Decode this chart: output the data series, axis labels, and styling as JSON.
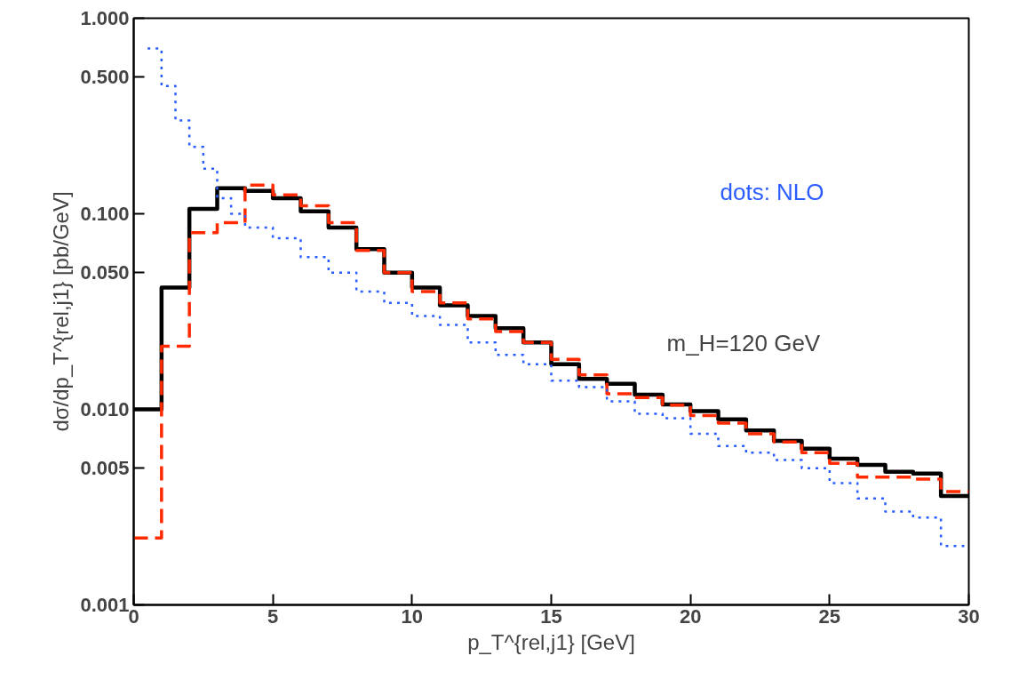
{
  "chart_data": {
    "type": "step",
    "xlabel": "p_T^{rel,j1} [GeV]",
    "ylabel": "dσ/dp_T^{rel,j1} [pb/GeV]",
    "log": "y",
    "xlim": [
      0,
      30
    ],
    "ylim": [
      0.001,
      1.0
    ],
    "xticks": [
      0,
      5,
      10,
      15,
      20,
      25,
      30
    ],
    "yticks": [
      {
        "value": 0.001,
        "label": "0.001"
      },
      {
        "value": 0.005,
        "label": "0.005"
      },
      {
        "value": 0.01,
        "label": "0.010"
      },
      {
        "value": 0.05,
        "label": "0.050"
      },
      {
        "value": 0.1,
        "label": "0.100"
      },
      {
        "value": 0.5,
        "label": "0.500"
      },
      {
        "value": 1.0,
        "label": "1.000"
      }
    ],
    "grid": false,
    "legend": "top right",
    "annotations": [
      "m_H=120 GeV"
    ],
    "series": [
      {
        "color": "#000000",
        "line_style": "solid",
        "x": [
          0,
          1,
          2,
          3,
          4,
          5,
          6,
          7,
          8,
          9,
          10,
          11,
          12,
          13,
          14,
          15,
          16,
          17,
          18,
          19,
          20,
          21,
          22,
          23,
          24,
          25,
          26,
          27,
          28,
          29,
          30
        ],
        "values": [
          0.01,
          0.042,
          0.106,
          0.135,
          0.131,
          0.12,
          0.103,
          0.085,
          0.066,
          0.05,
          0.042,
          0.034,
          0.03,
          0.026,
          0.022,
          0.017,
          0.0143,
          0.0135,
          0.0119,
          0.0106,
          0.0098,
          0.0089,
          0.0078,
          0.0069,
          0.0063,
          0.0056,
          0.0052,
          0.0048,
          0.0047,
          0.0036,
          0.0036
        ]
      },
      {
        "color": "#ff2a00",
        "line_style": "dashed",
        "x": [
          0,
          1,
          2,
          3,
          4,
          5,
          6,
          7,
          8,
          9,
          10,
          11,
          12,
          13,
          14,
          15,
          16,
          17,
          18,
          19,
          20,
          21,
          22,
          23,
          24,
          25,
          26,
          27,
          28,
          29,
          30
        ],
        "values": [
          0.0022,
          0.021,
          0.08,
          0.09,
          0.14,
          0.125,
          0.11,
          0.09,
          0.065,
          0.05,
          0.04,
          0.035,
          0.029,
          0.025,
          0.022,
          0.018,
          0.015,
          0.012,
          0.0115,
          0.0105,
          0.0093,
          0.0085,
          0.0075,
          0.0068,
          0.006,
          0.0053,
          0.0045,
          0.0045,
          0.0044,
          0.0038,
          0.0038
        ]
      },
      {
        "name": "dots: NLO",
        "color": "#2a5cff",
        "line_style": "dotted",
        "x": [
          0.5,
          1,
          1.5,
          2,
          2.5,
          3,
          3.5,
          4,
          5,
          6,
          7,
          8,
          9,
          10,
          11,
          12,
          13,
          14,
          15,
          16,
          17,
          18,
          19,
          20,
          21,
          22,
          23,
          24,
          25,
          26,
          27,
          28,
          29,
          30
        ],
        "values": [
          0.7,
          0.45,
          0.3,
          0.22,
          0.17,
          0.12,
          0.1,
          0.085,
          0.075,
          0.06,
          0.05,
          0.04,
          0.035,
          0.03,
          0.027,
          0.022,
          0.019,
          0.017,
          0.014,
          0.013,
          0.011,
          0.0095,
          0.009,
          0.0075,
          0.0065,
          0.006,
          0.0055,
          0.005,
          0.0042,
          0.0035,
          0.003,
          0.0028,
          0.002,
          0.002
        ]
      }
    ]
  }
}
